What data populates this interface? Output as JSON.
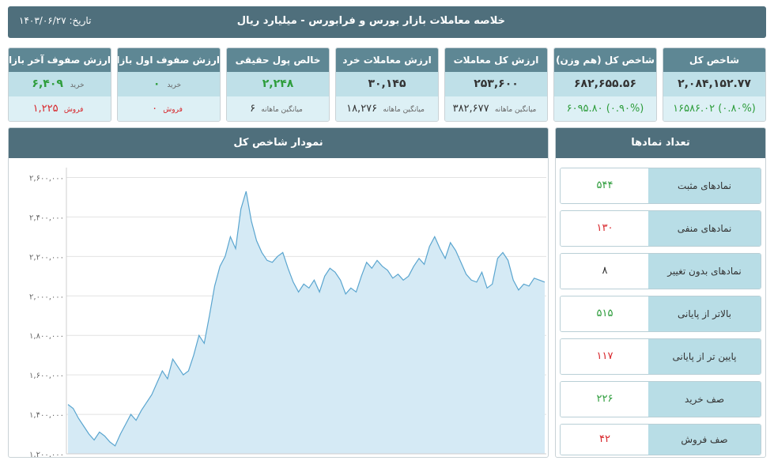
{
  "header": {
    "title": "خلاصه معاملات بازار بورس و فرابورس - میلیارد ریال",
    "date_label": "تاریخ:",
    "date_value": "۱۴۰۳/۰۶/۲۷"
  },
  "cards": [
    {
      "title": "شاخص کل",
      "value": "۲,۰۸۴,۱۵۲.۷۷",
      "sub": "(۰.۸۰%) ۱۶۵۸۶.۰۲",
      "sub_color": "green"
    },
    {
      "title": "شاخص کل (هم وزن)",
      "value": "۶۸۲,۶۵۵.۵۶",
      "sub": "(۰.۹۰%) ۶۰۹۵.۸۰",
      "sub_color": "green"
    },
    {
      "title": "ارزش کل معاملات",
      "value": "۲۵۳,۶۰۰",
      "sub_label": "میانگین ماهانه",
      "sub": "۳۸۲,۶۷۷"
    },
    {
      "title": "ارزش معاملات خرد",
      "value": "۳۰,۱۴۵",
      "sub_label": "میانگین ماهانه",
      "sub": "۱۸,۲۷۶"
    },
    {
      "title": "خالص پول حقیقی",
      "value": "۲,۲۴۸",
      "value_color": "green",
      "sub_label": "میانگین ماهانه",
      "sub": "۶"
    },
    {
      "title": "ارزش صفوف اول بازار",
      "buy_label": "خرید",
      "buy": "۰",
      "sell_label": "فروش",
      "sell": "۰"
    },
    {
      "title": "ارزش صفوف آخر بازار",
      "buy_label": "خرید",
      "buy": "۶,۴۰۹",
      "sell_label": "فروش",
      "sell": "۱,۲۲۵"
    }
  ],
  "chart_panel": {
    "title": "نمودار شاخص کل"
  },
  "chart_data": {
    "type": "area",
    "title": "نمودار شاخص کل",
    "ylim": [
      1200000,
      2650000
    ],
    "yticks": [
      "۱,۲۰۰,۰۰۰",
      "۱,۴۰۰,۰۰۰",
      "۱,۶۰۰,۰۰۰",
      "۱,۸۰۰,۰۰۰",
      "۲,۰۰۰,۰۰۰",
      "۲,۲۰۰,۰۰۰",
      "۲,۴۰۰,۰۰۰",
      "۲,۶۰۰,۰۰۰"
    ],
    "ytick_values": [
      1200000,
      1400000,
      1600000,
      1800000,
      2000000,
      2200000,
      2400000,
      2600000
    ],
    "grid": true,
    "fill_color": "#d5eaf5",
    "line_color": "#5aa5cf",
    "series": [
      {
        "values": [
          1450000,
          1430000,
          1380000,
          1340000,
          1300000,
          1270000,
          1310000,
          1290000,
          1260000,
          1240000,
          1300000,
          1350000,
          1400000,
          1370000,
          1420000,
          1460000,
          1500000,
          1560000,
          1620000,
          1580000,
          1680000,
          1640000,
          1600000,
          1620000,
          1700000,
          1800000,
          1760000,
          1900000,
          2050000,
          2150000,
          2200000,
          2300000,
          2240000,
          2440000,
          2530000,
          2380000,
          2280000,
          2220000,
          2180000,
          2170000,
          2200000,
          2220000,
          2140000,
          2070000,
          2020000,
          2060000,
          2040000,
          2080000,
          2020000,
          2100000,
          2140000,
          2120000,
          2080000,
          2010000,
          2040000,
          2020000,
          2100000,
          2170000,
          2140000,
          2180000,
          2150000,
          2130000,
          2090000,
          2110000,
          2080000,
          2100000,
          2150000,
          2190000,
          2160000,
          2250000,
          2300000,
          2240000,
          2190000,
          2270000,
          2230000,
          2170000,
          2110000,
          2080000,
          2070000,
          2120000,
          2040000,
          2060000,
          2190000,
          2220000,
          2180000,
          2080000,
          2030000,
          2060000,
          2050000,
          2090000,
          2080000,
          2070000
        ]
      }
    ]
  },
  "symbols_panel": {
    "title": "تعداد نمادها",
    "rows": [
      {
        "label": "نمادهای مثبت",
        "value": "۵۴۴",
        "color": "green"
      },
      {
        "label": "نمادهای منفی",
        "value": "۱۳۰",
        "color": "red"
      },
      {
        "label": "نمادهای بدون تغییر",
        "value": "۸",
        "color": "default"
      },
      {
        "label": "بالاتر از پایانی",
        "value": "۵۱۵",
        "color": "green"
      },
      {
        "label": "پایین تر از پایانی",
        "value": "۱۱۷",
        "color": "red"
      },
      {
        "label": "صف خرید",
        "value": "۲۲۶",
        "color": "green"
      },
      {
        "label": "صف فروش",
        "value": "۴۲",
        "color": "red"
      }
    ]
  }
}
